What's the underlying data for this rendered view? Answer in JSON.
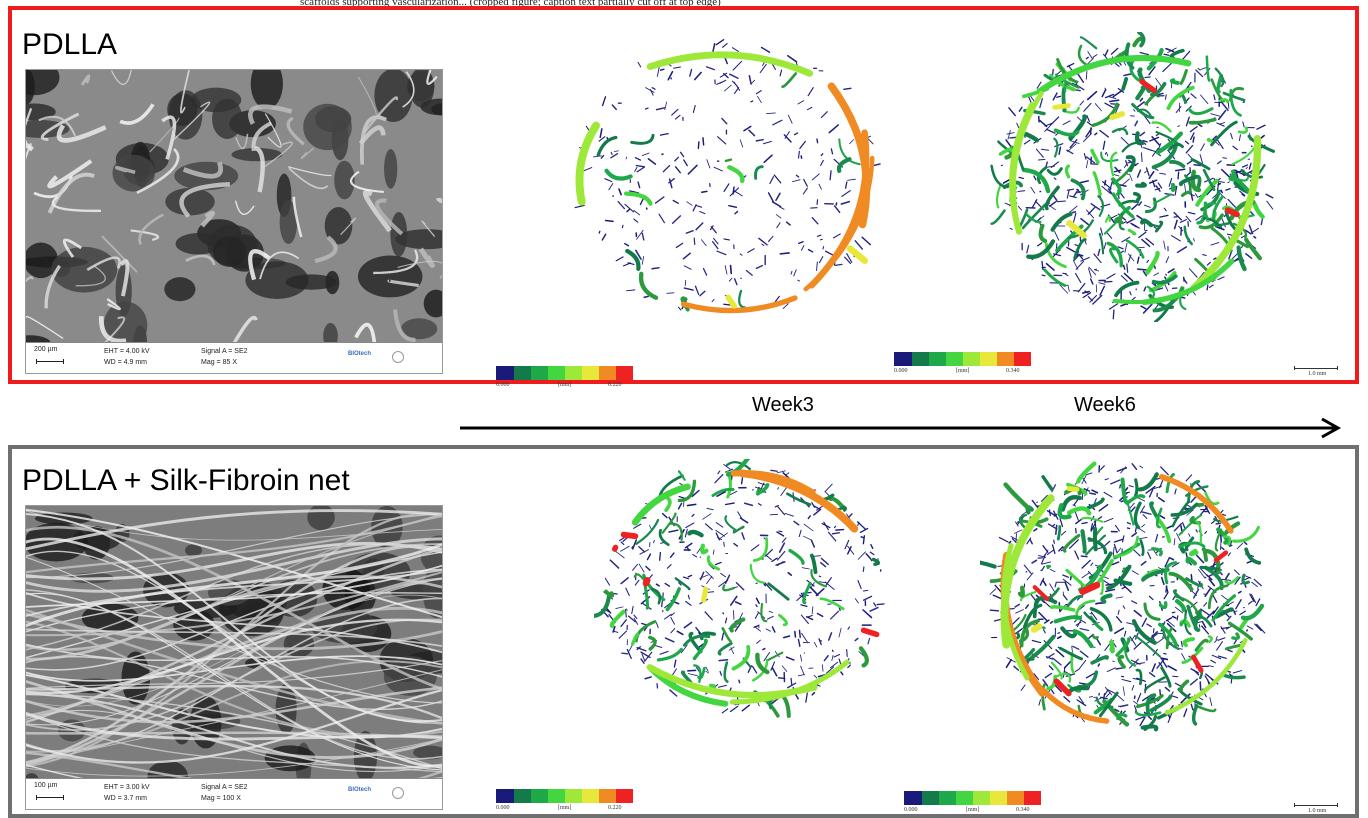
{
  "caption_top": "scaffolds supporting vascularization... (cropped figure; caption text partially cut off at top edge)",
  "panels": [
    {
      "title": "PDLLA",
      "border_color": "#ee1c1c",
      "sem": {
        "scale": "200 µm",
        "eht": "EHT = 4.00 kV",
        "wd": "WD = 4.9 mm",
        "signal": "Signal A = SE2",
        "mag": "Mag =    85 X",
        "logo": "BIOtech"
      },
      "week3_colorbar": {
        "min": "0.000",
        "unit": "[mm]",
        "max": "0.220"
      },
      "week6_colorbar": {
        "min": "0.000",
        "unit": "[mm]",
        "max": "0.340"
      },
      "scale_legend": "1.0 mm"
    },
    {
      "title": "PDLLA + Silk-Fibroin net",
      "border_color": "#707070",
      "sem": {
        "scale": "100 µm",
        "eht": "EHT = 3.00 kV",
        "wd": "WD = 3.7 mm",
        "signal": "Signal A = SE2",
        "mag": "Mag =   100 X",
        "logo": "BIOtech"
      },
      "week3_colorbar": {
        "min": "0.000",
        "unit": "[mm]",
        "max": "0.220"
      },
      "week6_colorbar": {
        "min": "0.000",
        "unit": "[mm]",
        "max": "0.340"
      },
      "scale_legend": "1.0 mm"
    }
  ],
  "timeline": {
    "labels": [
      "Week3",
      "Week6"
    ]
  },
  "colormap": [
    "#1a1a7a",
    "#137a4a",
    "#1fa84a",
    "#44d640",
    "#9ee83a",
    "#e8e83a",
    "#f08a22",
    "#ee2222"
  ]
}
